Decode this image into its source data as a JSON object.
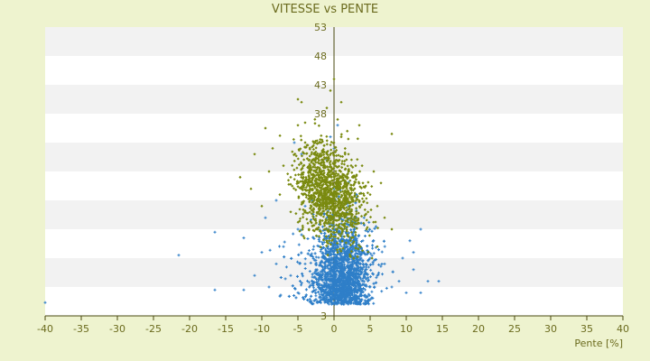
{
  "chart_data": {
    "type": "scatter",
    "title": "VITESSE vs PENTE",
    "xlabel": "Pente [%]",
    "ylabel": "",
    "xlim": [
      -40,
      40
    ],
    "ylim": [
      3,
      53
    ],
    "x_ticks": [
      -40,
      -35,
      -30,
      -25,
      -20,
      -15,
      -10,
      -5,
      0,
      5,
      10,
      15,
      20,
      25,
      30,
      35,
      40
    ],
    "y_ticks": [
      3,
      8,
      13,
      18,
      23,
      28,
      33,
      38,
      43,
      48,
      53
    ],
    "y_tick_labels": [
      "3",
      "",
      "",
      "",
      "",
      "",
      "",
      "38",
      "43",
      "48",
      "53"
    ],
    "grid": "alternating horizontal bands",
    "series": [
      {
        "color": "#2f7fc8",
        "marker": "plus",
        "description_points": [
          [
            -40,
            5.3
          ],
          [
            -21.5,
            13.5
          ],
          [
            -16.5,
            17.5
          ],
          [
            -16.5,
            7.5
          ],
          [
            -12.5,
            16.5
          ],
          [
            -12.5,
            7.5
          ],
          [
            -11,
            10
          ],
          [
            -10,
            14
          ],
          [
            -9,
            8
          ],
          [
            -8,
            12
          ],
          [
            -7,
            15
          ],
          [
            -6,
            10
          ],
          [
            -5,
            18
          ],
          [
            -5,
            7
          ],
          [
            -4,
            22
          ],
          [
            -4,
            12
          ],
          [
            -3,
            26
          ],
          [
            -3,
            9
          ],
          [
            -2,
            28
          ],
          [
            -2,
            15
          ],
          [
            -1,
            30
          ],
          [
            -1,
            20
          ],
          [
            0,
            32
          ],
          [
            0,
            25
          ],
          [
            0,
            18
          ],
          [
            0,
            10
          ],
          [
            1,
            27
          ],
          [
            1,
            14
          ],
          [
            2,
            22
          ],
          [
            2,
            9
          ],
          [
            3,
            19
          ],
          [
            3,
            12
          ],
          [
            4,
            16
          ],
          [
            5,
            13
          ],
          [
            6,
            10
          ],
          [
            7,
            12
          ],
          [
            8,
            8
          ],
          [
            9,
            9
          ],
          [
            10,
            7
          ],
          [
            11,
            11
          ],
          [
            12,
            7
          ],
          [
            13,
            9
          ],
          [
            14.5,
            9
          ],
          [
            12,
            18
          ],
          [
            10.5,
            16
          ],
          [
            9.5,
            13
          ],
          [
            11,
            14
          ],
          [
            -9.5,
            20
          ],
          [
            -8,
            23
          ],
          [
            -5.5,
            33
          ],
          [
            -4.5,
            31
          ],
          [
            0.5,
            36
          ],
          [
            -0.5,
            34
          ]
        ]
      },
      {
        "color": "#7a8a10",
        "marker": "diamond",
        "description_points": [
          [
            -5,
            40.5
          ],
          [
            -4.5,
            40
          ],
          [
            -9.5,
            35.5
          ],
          [
            -8.5,
            32
          ],
          [
            -7,
            29
          ],
          [
            -6,
            27
          ],
          [
            -5,
            36
          ],
          [
            -4,
            33
          ],
          [
            -3,
            30
          ],
          [
            -2,
            28
          ],
          [
            -1,
            39
          ],
          [
            0,
            44
          ],
          [
            0.5,
            37
          ],
          [
            1,
            34
          ],
          [
            2,
            31
          ],
          [
            3,
            29
          ],
          [
            3.5,
            36
          ],
          [
            4,
            26
          ],
          [
            5,
            24
          ],
          [
            6,
            22
          ],
          [
            7,
            20
          ],
          [
            8,
            34.5
          ],
          [
            8,
            18
          ],
          [
            -13,
            27
          ],
          [
            -11.5,
            25
          ],
          [
            -11,
            31
          ],
          [
            -10,
            22
          ],
          [
            -9,
            28
          ],
          [
            -7.5,
            24
          ],
          [
            -6,
            21
          ],
          [
            -3,
            25
          ],
          [
            -1.5,
            22
          ],
          [
            0,
            20
          ],
          [
            1.5,
            19
          ],
          [
            2.5,
            23
          ],
          [
            3,
            17
          ],
          [
            4.5,
            18
          ],
          [
            6,
            15
          ],
          [
            -2.5,
            18
          ],
          [
            -1,
            16
          ],
          [
            0.5,
            14
          ],
          [
            5.5,
            28
          ],
          [
            6.5,
            26
          ],
          [
            1,
            40
          ],
          [
            -0.5,
            42
          ]
        ]
      }
    ]
  }
}
